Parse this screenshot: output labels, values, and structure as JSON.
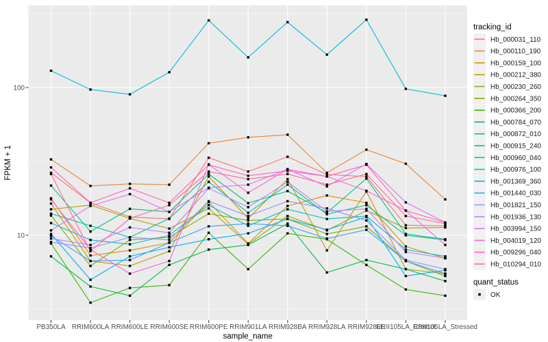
{
  "figure": {
    "background": "#FFFFFF",
    "panel_background": "#EBEBEB",
    "grid_color": "#FFFFFF",
    "tick_label_color": "#4D4D4D",
    "axis_title_color": "#000000",
    "point_color": "#000000"
  },
  "chart_data": {
    "type": "line",
    "title": "",
    "xlabel": "sample_name",
    "ylabel": "FPKM + 1",
    "y_scale": "log10",
    "y_tick_labels": [
      "10",
      "100"
    ],
    "y_ticks": [
      10,
      100
    ],
    "y_minor_ticks": [
      3.162,
      31.62,
      316.2
    ],
    "ylim": [
      3.1,
      330
    ],
    "grid": true,
    "legend_position": "right",
    "point_marker": "filled-black-square",
    "categories": [
      "PB350LA",
      "RRIM600LA",
      "RRIM600LE",
      "RRIM600SE",
      "RRIM600PE",
      "RRIM901LA",
      "RRIM928BA",
      "RRIM928LA",
      "RRIM928LE",
      "RRII105LA_Control",
      "RRII105LA_Stressed"
    ],
    "series": [
      {
        "name": "Hb_000031_110",
        "color": "#F8766D",
        "values": [
          26.5,
          16.6,
          13.3,
          12.9,
          33.5,
          27.0,
          34.0,
          25.8,
          25.0,
          11.7,
          11.6
        ]
      },
      {
        "name": "Hb_000110_190",
        "color": "#EA8331",
        "values": [
          32.6,
          21.6,
          22.3,
          22.0,
          42.0,
          46.0,
          48.0,
          26.5,
          38.0,
          30.5,
          17.5
        ]
      },
      {
        "name": "Hb_000159_100",
        "color": "#D89000",
        "values": [
          17.8,
          7.3,
          7.9,
          8.9,
          16.8,
          8.8,
          15.8,
          18.6,
          16.6,
          8.4,
          7.0
        ]
      },
      {
        "name": "Hb_000212_380",
        "color": "#C09B00",
        "values": [
          16.4,
          6.7,
          6.2,
          7.8,
          25.0,
          13.0,
          24.0,
          7.9,
          19.8,
          5.9,
          5.5
        ]
      },
      {
        "name": "Hb_000230_260",
        "color": "#A3A500",
        "values": [
          15.0,
          16.0,
          13.0,
          11.1,
          15.2,
          8.7,
          13.5,
          10.8,
          14.7,
          11.2,
          11.3
        ]
      },
      {
        "name": "Hb_000264_350",
        "color": "#7CAE00",
        "values": [
          13.6,
          6.2,
          9.3,
          9.7,
          14.0,
          12.6,
          12.9,
          10.2,
          11.5,
          6.7,
          5.3
        ]
      },
      {
        "name": "Hb_000366_200",
        "color": "#39B600",
        "values": [
          8.8,
          3.5,
          4.4,
          4.6,
          10.4,
          5.9,
          10.3,
          9.4,
          6.3,
          4.3,
          3.9
        ]
      },
      {
        "name": "Hb_000784_070",
        "color": "#00BB4E",
        "values": [
          7.2,
          4.5,
          3.9,
          6.3,
          8.0,
          8.6,
          12.0,
          5.6,
          6.8,
          5.9,
          4.9
        ]
      },
      {
        "name": "Hb_000872_010",
        "color": "#00BF7D",
        "values": [
          21.7,
          10.6,
          15.1,
          14.4,
          26.0,
          16.5,
          19.9,
          14.2,
          24.2,
          10.2,
          9.4
        ]
      },
      {
        "name": "Hb_000915_240",
        "color": "#00C1A3",
        "values": [
          14.0,
          11.6,
          9.7,
          13.0,
          23.0,
          14.2,
          22.0,
          13.9,
          16.0,
          10.0,
          9.3
        ]
      },
      {
        "name": "Hb_000960_040",
        "color": "#00BFC4",
        "values": [
          12.1,
          9.3,
          8.7,
          10.0,
          16.0,
          11.6,
          15.0,
          12.9,
          13.5,
          8.0,
          7.2
        ]
      },
      {
        "name": "Hb_000976_100",
        "color": "#00BAE0",
        "values": [
          130,
          97,
          90,
          127,
          285,
          160,
          277,
          167,
          288,
          98,
          88
        ]
      },
      {
        "name": "Hb_001369_360",
        "color": "#00B0F6",
        "values": [
          10.2,
          5.0,
          7.2,
          8.3,
          9.4,
          10.3,
          12.9,
          10.9,
          13.3,
          5.3,
          5.8
        ]
      },
      {
        "name": "Hb_001440_030",
        "color": "#35A2FF",
        "values": [
          9.9,
          6.7,
          6.8,
          8.9,
          11.5,
          12.0,
          11.6,
          9.5,
          10.9,
          6.7,
          5.5
        ]
      },
      {
        "name": "Hb_001821_150",
        "color": "#9590FF",
        "values": [
          9.0,
          8.2,
          9.7,
          9.3,
          17.0,
          13.5,
          17.0,
          15.2,
          12.6,
          6.8,
          5.9
        ]
      },
      {
        "name": "Hb_001936_130",
        "color": "#C77CFF",
        "values": [
          9.5,
          8.6,
          11.3,
          10.4,
          20.8,
          15.5,
          23.0,
          14.5,
          15.1,
          7.7,
          7.0
        ]
      },
      {
        "name": "Hb_003994_150",
        "color": "#E76BF3",
        "values": [
          10.8,
          15.8,
          19.0,
          14.4,
          21.0,
          22.0,
          28.0,
          21.4,
          30.4,
          16.7,
          12.2
        ]
      },
      {
        "name": "Hb_004019_120",
        "color": "#FA62DB",
        "values": [
          17.5,
          8.0,
          5.5,
          6.7,
          30.2,
          19.4,
          28.0,
          25.0,
          20.0,
          14.7,
          8.6
        ]
      },
      {
        "name": "Hb_009296_040",
        "color": "#FF62BC",
        "values": [
          28.8,
          16.6,
          20.8,
          16.6,
          30.0,
          25.3,
          27.3,
          25.0,
          30.0,
          14.7,
          12.2
        ]
      },
      {
        "name": "Hb_010294_010",
        "color": "#FF6A98",
        "values": [
          26.0,
          7.8,
          13.0,
          16.0,
          27.0,
          24.0,
          26.0,
          22.0,
          26.0,
          13.5,
          12.0
        ]
      }
    ]
  },
  "legend": {
    "tracking_title": "tracking_id",
    "quant_title": "quant_status",
    "quant_items": [
      {
        "label": "OK"
      }
    ]
  }
}
